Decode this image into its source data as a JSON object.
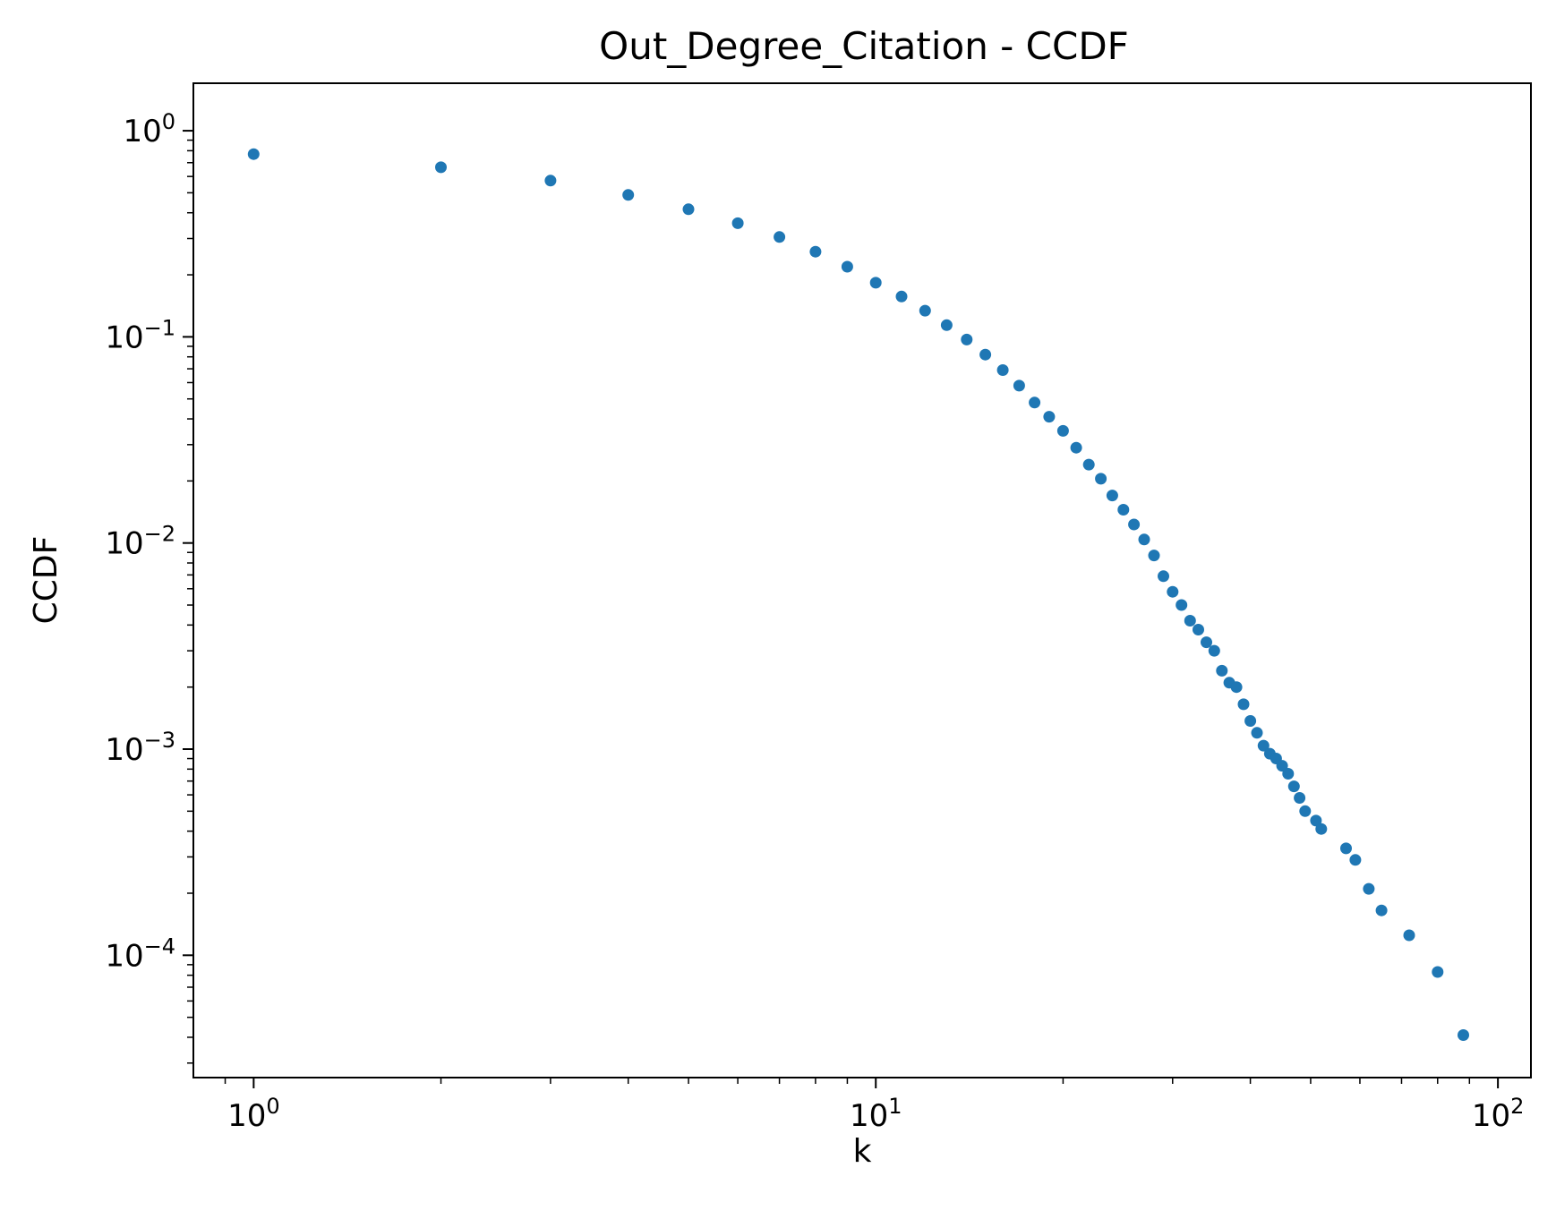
{
  "chart_data": {
    "type": "scatter",
    "title": "Out_Degree_Citation - CCDF",
    "xlabel": "k",
    "ylabel": "CCDF",
    "x_scale": "log",
    "y_scale": "log",
    "xlim": [
      0.8,
      113
    ],
    "ylim": [
      2.55e-05,
      1.7
    ],
    "x_ticks": [
      {
        "base": "10",
        "exp": "0",
        "value": 1
      },
      {
        "base": "10",
        "exp": "1",
        "value": 10
      },
      {
        "base": "10",
        "exp": "2",
        "value": 100
      }
    ],
    "y_ticks": [
      {
        "base": "10",
        "exp": "0",
        "value": 1
      },
      {
        "base": "10",
        "exp": "−1",
        "value": 0.1
      },
      {
        "base": "10",
        "exp": "−2",
        "value": 0.01
      },
      {
        "base": "10",
        "exp": "−3",
        "value": 0.001
      },
      {
        "base": "10",
        "exp": "−4",
        "value": 0.0001
      }
    ],
    "grid": false,
    "legend": "none",
    "marker_color": "#1f77b4",
    "series": [
      {
        "points": [
          [
            1,
            0.77
          ],
          [
            2,
            0.665
          ],
          [
            3,
            0.573
          ],
          [
            4,
            0.488
          ],
          [
            5,
            0.416
          ],
          [
            6,
            0.356
          ],
          [
            7,
            0.305
          ],
          [
            8,
            0.259
          ],
          [
            9,
            0.219
          ],
          [
            10,
            0.183
          ],
          [
            11,
            0.157
          ],
          [
            12,
            0.134
          ],
          [
            13,
            0.114
          ],
          [
            14,
            0.097
          ],
          [
            15,
            0.082
          ],
          [
            16,
            0.069
          ],
          [
            17,
            0.058
          ],
          [
            18,
            0.048
          ],
          [
            19,
            0.041
          ],
          [
            20,
            0.035
          ],
          [
            21,
            0.029
          ],
          [
            22,
            0.024
          ],
          [
            23,
            0.0205
          ],
          [
            24,
            0.017
          ],
          [
            25,
            0.0145
          ],
          [
            26,
            0.0123
          ],
          [
            27,
            0.0104
          ],
          [
            28,
            0.0087
          ],
          [
            29,
            0.0069
          ],
          [
            30,
            0.0058
          ],
          [
            31,
            0.005
          ],
          [
            32,
            0.0042
          ],
          [
            33,
            0.0038
          ],
          [
            34,
            0.0033
          ],
          [
            35,
            0.003
          ],
          [
            36,
            0.0024
          ],
          [
            37,
            0.0021
          ],
          [
            38,
            0.002
          ],
          [
            39,
            0.00165
          ],
          [
            40,
            0.00137
          ],
          [
            41,
            0.0012
          ],
          [
            42,
            0.00104
          ],
          [
            43,
            0.00095
          ],
          [
            44,
            0.0009
          ],
          [
            45,
            0.00083
          ],
          [
            46,
            0.00076
          ],
          [
            47,
            0.00066
          ],
          [
            48,
            0.00058
          ],
          [
            49,
            0.0005
          ],
          [
            51,
            0.00045
          ],
          [
            52,
            0.00041
          ],
          [
            57,
            0.00033
          ],
          [
            59,
            0.00029
          ],
          [
            62,
            0.00021
          ],
          [
            65,
            0.000165
          ],
          [
            72,
            0.000125
          ],
          [
            80,
            8.3e-05
          ],
          [
            88,
            4.1e-05
          ]
        ]
      }
    ]
  }
}
